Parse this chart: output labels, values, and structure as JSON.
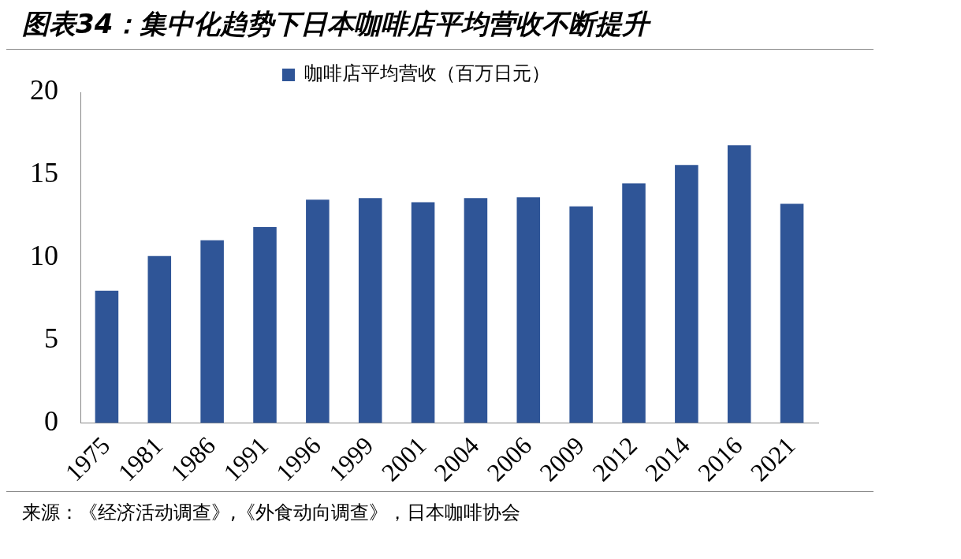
{
  "chart_data": {
    "type": "bar",
    "title": "图表34：集中化趋势下日本咖啡店平均营收不断提升",
    "categories": [
      "1975",
      "1981",
      "1986",
      "1991",
      "1996",
      "1999",
      "2001",
      "2004",
      "2006",
      "2009",
      "2012",
      "2014",
      "2016",
      "2021"
    ],
    "series": [
      {
        "name": "咖啡店平均营收（百万日元）",
        "color": "#2f5597",
        "values": [
          8.0,
          10.1,
          11.05,
          11.85,
          13.5,
          13.6,
          13.35,
          13.6,
          13.65,
          13.1,
          14.5,
          15.6,
          16.8,
          13.25
        ]
      }
    ],
    "ylim": [
      0,
      20
    ],
    "yticks": [
      0,
      5,
      10,
      15,
      20
    ],
    "grid": false,
    "legend": "top",
    "annotations": [
      "来源：《经济活动调查》,《外食动向调查》，日本咖啡协会"
    ]
  }
}
